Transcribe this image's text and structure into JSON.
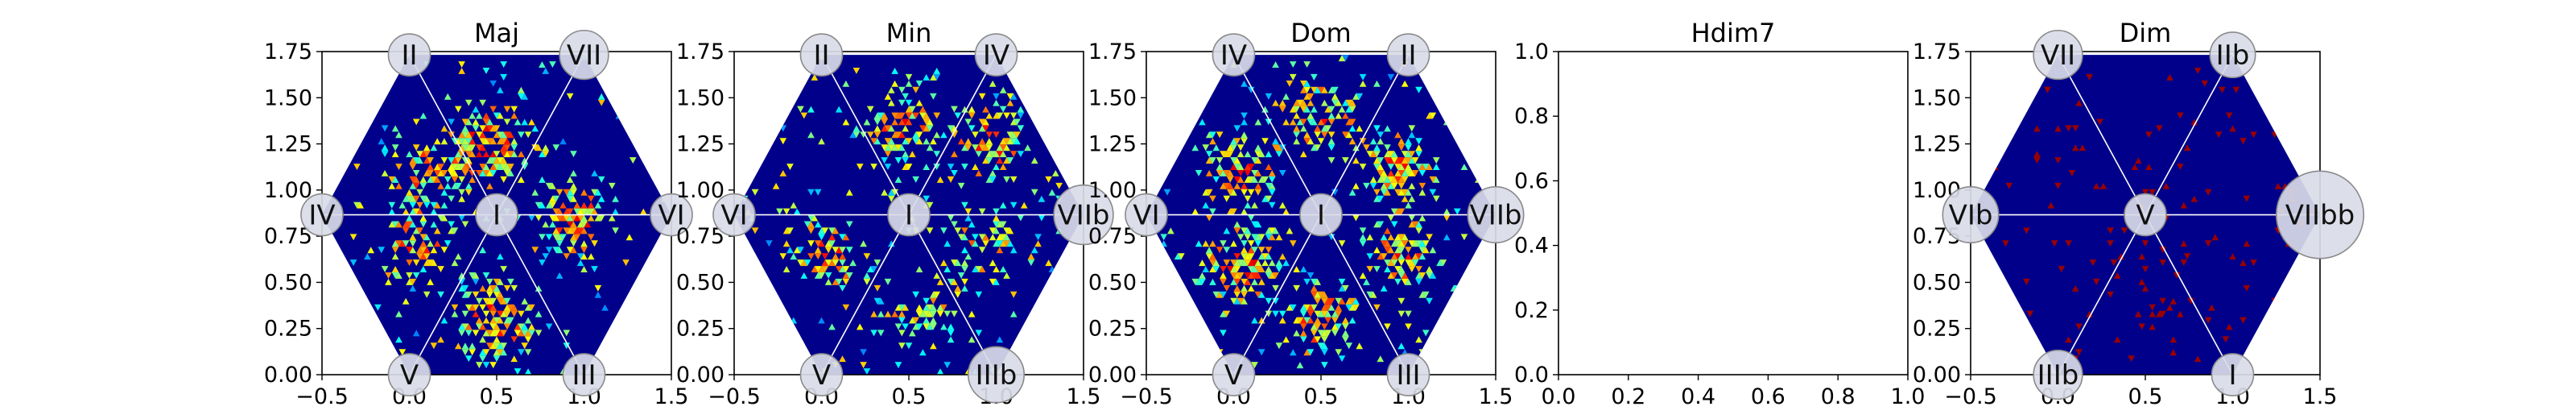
{
  "chart_data": [
    {
      "type": "heatmap",
      "title": "Maj",
      "xlim": [
        -0.5,
        1.5
      ],
      "ylim": [
        0,
        1.75
      ],
      "xticks": [
        "−0.5",
        "0.0",
        "0.5",
        "1.0",
        "1.5"
      ],
      "yticks": [
        "0.00",
        "0.25",
        "0.50",
        "0.75",
        "1.00",
        "1.25",
        "1.50",
        "1.75"
      ],
      "center": {
        "label": "I",
        "x": 0.5,
        "y": 0.866,
        "size": 0.12
      },
      "nodes": [
        {
          "label": "II",
          "x": 0.0,
          "y": 1.732,
          "size": 0.12
        },
        {
          "label": "VII",
          "x": 1.0,
          "y": 1.732,
          "size": 0.14
        },
        {
          "label": "IV",
          "x": -0.5,
          "y": 0.866,
          "size": 0.12
        },
        {
          "label": "VI",
          "x": 1.5,
          "y": 0.866,
          "size": 0.12
        },
        {
          "label": "V",
          "x": 0.0,
          "y": 0.0,
          "size": 0.12
        },
        {
          "label": "III",
          "x": 1.0,
          "y": 0.0,
          "size": 0.12
        }
      ],
      "hotspots": [
        {
          "x": 0.45,
          "y": 1.25,
          "strength": 0.8
        },
        {
          "x": 0.95,
          "y": 0.85,
          "strength": 0.7
        },
        {
          "x": 0.5,
          "y": 0.3,
          "strength": 0.75
        },
        {
          "x": 0.05,
          "y": 0.7,
          "strength": 0.6
        },
        {
          "x": 0.1,
          "y": 1.1,
          "strength": 0.55
        }
      ],
      "grid": false
    },
    {
      "type": "heatmap",
      "title": "Min",
      "xlim": [
        -0.5,
        1.5
      ],
      "ylim": [
        0,
        1.75
      ],
      "xticks": [
        "−0.5",
        "0.0",
        "0.5",
        "1.0",
        "1.5"
      ],
      "yticks": [
        "0.00",
        "0.25",
        "0.50",
        "0.75",
        "1.00",
        "1.25",
        "1.50",
        "1.75"
      ],
      "center": {
        "label": "I",
        "x": 0.5,
        "y": 0.866,
        "size": 0.12
      },
      "nodes": [
        {
          "label": "II",
          "x": 0.0,
          "y": 1.732,
          "size": 0.12
        },
        {
          "label": "IV",
          "x": 1.0,
          "y": 1.732,
          "size": 0.12
        },
        {
          "label": "VI",
          "x": -0.5,
          "y": 0.866,
          "size": 0.12
        },
        {
          "label": "VIIb",
          "x": 1.5,
          "y": 0.866,
          "size": 0.17
        },
        {
          "label": "V",
          "x": 0.0,
          "y": 0.0,
          "size": 0.12
        },
        {
          "label": "IIIb",
          "x": 1.0,
          "y": 0.0,
          "size": 0.16
        }
      ],
      "hotspots": [
        {
          "x": 0.95,
          "y": 1.25,
          "strength": 0.7
        },
        {
          "x": 0.45,
          "y": 1.35,
          "strength": 0.6
        },
        {
          "x": 0.05,
          "y": 0.65,
          "strength": 0.55
        },
        {
          "x": 0.55,
          "y": 0.35,
          "strength": 0.45
        },
        {
          "x": 0.95,
          "y": 0.7,
          "strength": 0.4
        }
      ],
      "grid": false
    },
    {
      "type": "heatmap",
      "title": "Dom",
      "xlim": [
        -0.5,
        1.5
      ],
      "ylim": [
        0,
        1.75
      ],
      "xticks": [
        "−0.5",
        "0.0",
        "0.5",
        "1.0",
        "1.5"
      ],
      "yticks": [
        "0.00",
        "0.25",
        "0.50",
        "0.75",
        "1.00",
        "1.25",
        "1.50",
        "1.75"
      ],
      "center": {
        "label": "I",
        "x": 0.5,
        "y": 0.866,
        "size": 0.12
      },
      "nodes": [
        {
          "label": "IV",
          "x": 0.0,
          "y": 1.732,
          "size": 0.12
        },
        {
          "label": "II",
          "x": 1.0,
          "y": 1.732,
          "size": 0.12
        },
        {
          "label": "VI",
          "x": -0.5,
          "y": 0.866,
          "size": 0.12
        },
        {
          "label": "VIIb",
          "x": 1.5,
          "y": 0.866,
          "size": 0.16
        },
        {
          "label": "V",
          "x": 0.0,
          "y": 0.0,
          "size": 0.12
        },
        {
          "label": "III",
          "x": 1.0,
          "y": 0.0,
          "size": 0.12
        }
      ],
      "hotspots": [
        {
          "x": 0.05,
          "y": 1.1,
          "strength": 0.65
        },
        {
          "x": 0.95,
          "y": 1.1,
          "strength": 0.6
        },
        {
          "x": 0.5,
          "y": 1.4,
          "strength": 0.55
        },
        {
          "x": 0.05,
          "y": 0.6,
          "strength": 0.7
        },
        {
          "x": 0.95,
          "y": 0.65,
          "strength": 0.6
        },
        {
          "x": 0.5,
          "y": 0.3,
          "strength": 0.65
        }
      ],
      "grid": false
    },
    {
      "type": "heatmap",
      "title": "Hdim7",
      "xlim": [
        0,
        1
      ],
      "ylim": [
        0,
        1
      ],
      "xticks": [
        "0.0",
        "0.2",
        "0.4",
        "0.6",
        "0.8",
        "1.0"
      ],
      "yticks": [
        "0.0",
        "0.2",
        "0.4",
        "0.6",
        "0.8",
        "1.0"
      ],
      "empty": true,
      "grid": false
    },
    {
      "type": "heatmap",
      "title": "Dim",
      "xlim": [
        -0.5,
        1.5
      ],
      "ylim": [
        0,
        1.75
      ],
      "xticks": [
        "−0.5",
        "0.0",
        "0.5",
        "1.0",
        "1.5"
      ],
      "yticks": [
        "0.00",
        "0.25",
        "0.50",
        "0.75",
        "1.00",
        "1.25",
        "1.50",
        "1.75"
      ],
      "center": {
        "label": "V",
        "x": 0.5,
        "y": 0.866,
        "size": 0.12
      },
      "nodes": [
        {
          "label": "VII",
          "x": 0.0,
          "y": 1.732,
          "size": 0.14
        },
        {
          "label": "IIb",
          "x": 1.0,
          "y": 1.732,
          "size": 0.13
        },
        {
          "label": "VIb",
          "x": -0.5,
          "y": 0.866,
          "size": 0.16
        },
        {
          "label": "VIIbb",
          "x": 1.5,
          "y": 0.866,
          "size": 0.25
        },
        {
          "label": "IIIb",
          "x": 0.0,
          "y": 0.0,
          "size": 0.14
        },
        {
          "label": "I",
          "x": 1.0,
          "y": 0.0,
          "size": 0.12
        }
      ],
      "hotspots": [],
      "sparse_red": true,
      "grid": false
    }
  ],
  "colors": {
    "colormap": "jet",
    "hex_base": "#00008b",
    "hex_line": "#1a1a9e",
    "divider": "#ffffff",
    "node_fill": "#d9dbe8",
    "node_stroke": "#8a8a8a"
  }
}
